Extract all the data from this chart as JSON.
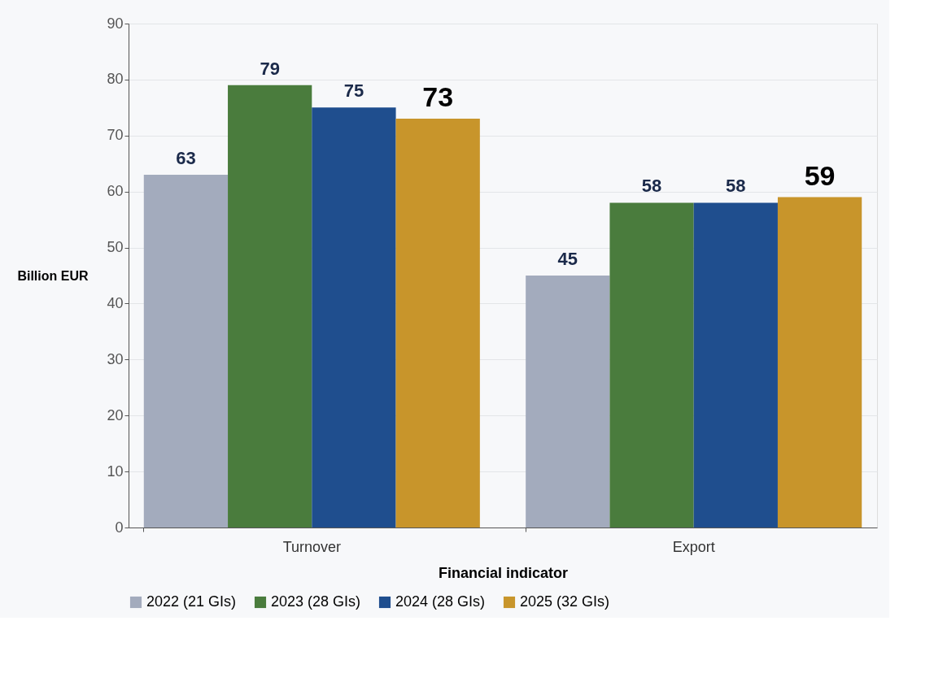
{
  "chart_data": {
    "type": "bar",
    "xlabel": "Financial indicator",
    "ylabel": "Billion EUR",
    "categories": [
      "Turnover",
      "Export"
    ],
    "series": [
      {
        "name": "2022 (21 GIs)",
        "color": "#a3abbd",
        "values": [
          63,
          45
        ]
      },
      {
        "name": "2023 (28 GIs)",
        "color": "#4a7c3d",
        "values": [
          79,
          58
        ]
      },
      {
        "name": "2024 (28 GIs)",
        "color": "#1f4e8e",
        "values": [
          75,
          58
        ]
      },
      {
        "name": "2025 (32 GIs)",
        "color": "#c8952b",
        "values": [
          73,
          59
        ]
      }
    ],
    "ylim": [
      0,
      90
    ],
    "yticks": [
      0,
      10,
      20,
      30,
      40,
      50,
      60,
      70,
      80,
      90
    ],
    "grid": "y",
    "legend": "bottom",
    "data_labels": true
  }
}
